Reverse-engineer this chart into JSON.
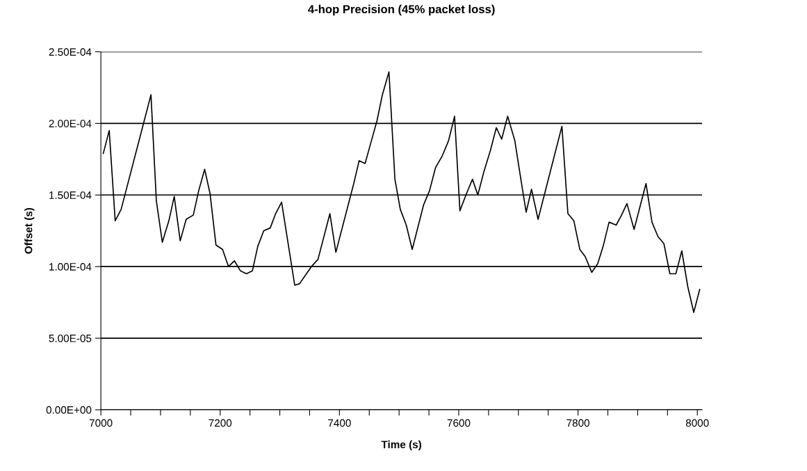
{
  "chart_data": {
    "type": "line",
    "title": "4-hop Precision (45% packet loss)",
    "xlabel": "Time (s)",
    "ylabel": "Offset (s)",
    "xlim": [
      7000,
      8008
    ],
    "xticks": [
      7000,
      {
        "value": 7050,
        "label": null
      },
      7200,
      {
        "value": 7100,
        "label": null
      },
      {
        "value": 7150,
        "label": null
      },
      {
        "value": 7250,
        "label": null
      },
      {
        "value": 7300,
        "label": null
      },
      {
        "value": 7350,
        "label": null
      },
      7400,
      {
        "value": 7450,
        "label": null
      },
      {
        "value": 7500,
        "label": null
      },
      {
        "value": 7550,
        "label": null
      },
      7600,
      {
        "value": 7650,
        "label": null
      },
      {
        "value": 7700,
        "label": null
      },
      {
        "value": 7750,
        "label": null
      },
      7800,
      {
        "value": 7850,
        "label": null
      },
      {
        "value": 7900,
        "label": null
      },
      {
        "value": 7950,
        "label": null
      },
      8000
    ],
    "ylim": [
      0,
      0.00025
    ],
    "yticks": [
      {
        "value": 0,
        "label": "0.00E+00"
      },
      {
        "value": 5e-05,
        "label": "5.00E-05"
      },
      {
        "value": 0.0001,
        "label": "1.00E-04"
      },
      {
        "value": 0.00015,
        "label": "1.50E-04"
      },
      {
        "value": 0.0002,
        "label": "2.00E-04"
      },
      {
        "value": 0.00025,
        "label": "2.50E-04"
      }
    ],
    "grid": "y",
    "legend": false,
    "marker": "none",
    "line_style": "solid",
    "series": [
      {
        "color": "#000000",
        "x": [
          7004,
          7014,
          7024,
          7034,
          7084,
          7093,
          7103,
          7114,
          7123,
          7133,
          7143,
          7155,
          7164,
          7174,
          7183,
          7193,
          7204,
          7214,
          7224,
          7234,
          7244,
          7254,
          7263,
          7273,
          7284,
          7293,
          7303,
          7325,
          7333,
          7343,
          7353,
          7364,
          7384,
          7394,
          7414,
          7424,
          7433,
          7443,
          7453,
          7463,
          7472,
          7483,
          7493,
          7502,
          7512,
          7522,
          7541,
          7551,
          7561,
          7572,
          7583,
          7593,
          7602,
          7613,
          7623,
          7632,
          7642,
          7653,
          7663,
          7672,
          7682,
          7694,
          7703,
          7713,
          7722,
          7733,
          7773,
          7783,
          7793,
          7803,
          7812,
          7823,
          7833,
          7842,
          7852,
          7864,
          7873,
          7882,
          7894,
          7904,
          7914,
          7924,
          7934,
          7944,
          7954,
          7964,
          7974,
          7984,
          7994,
          8004
        ],
        "values": [
          0.000179,
          0.000195,
          0.000132,
          0.00014,
          0.00022,
          0.000146,
          0.000117,
          0.000132,
          0.000149,
          0.000118,
          0.000133,
          0.000136,
          0.000153,
          0.000168,
          0.000151,
          0.000115,
          0.000112,
          0.0001,
          0.000104,
          9.7e-05,
          9.5e-05,
          9.7e-05,
          0.000114,
          0.000125,
          0.000127,
          0.000137,
          0.000145,
          8.7e-05,
          8.8e-05,
          9.4e-05,
          0.0001,
          0.000105,
          0.000137,
          0.00011,
          0.000142,
          0.000158,
          0.000174,
          0.000172,
          0.000187,
          0.000202,
          0.00022,
          0.000236,
          0.000161,
          0.00014,
          0.000129,
          0.000112,
          0.000143,
          0.000153,
          0.000169,
          0.000177,
          0.000188,
          0.000205,
          0.000139,
          0.000151,
          0.000161,
          0.00015,
          0.000166,
          0.000181,
          0.000197,
          0.000189,
          0.000205,
          0.000188,
          0.000164,
          0.000138,
          0.000154,
          0.000133,
          0.000198,
          0.000137,
          0.000132,
          0.000112,
          0.000107,
          9.6e-05,
          0.000102,
          0.000114,
          0.000131,
          0.000129,
          0.000136,
          0.000144,
          0.000126,
          0.000142,
          0.000158,
          0.000131,
          0.000121,
          0.000116,
          9.5e-05,
          9.5e-05,
          0.000111,
          8.6e-05,
          6.8e-05,
          8.4e-05
        ]
      }
    ]
  }
}
